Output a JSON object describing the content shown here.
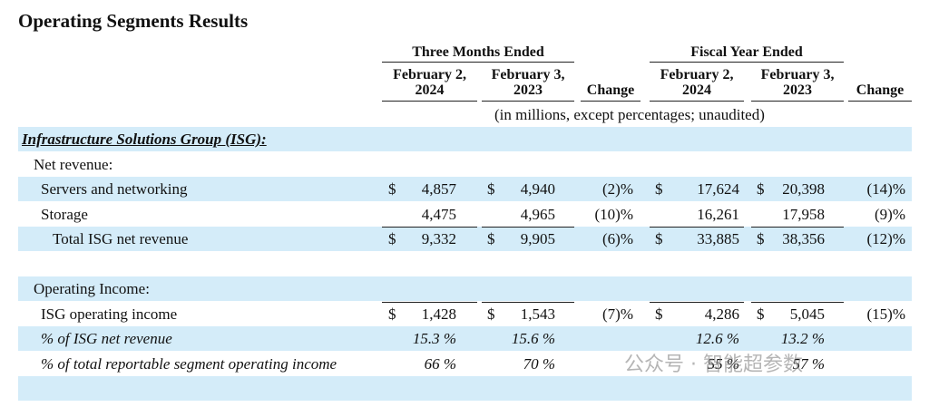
{
  "title": "Operating Segments Results",
  "groups": [
    "Three Months Ended",
    "Fiscal Year Ended"
  ],
  "columns": [
    "February 2,\n2024",
    "February 3,\n2023",
    "Change",
    "February 2,\n2024",
    "February 3,\n2023",
    "Change"
  ],
  "note": "(in millions, except percentages; unaudited)",
  "rows": [
    {
      "label": "Infrastructure Solutions Group (ISG):",
      "style": "section"
    },
    {
      "label": "Net revenue:",
      "style": "sub"
    },
    {
      "label": "Servers and networking",
      "style": "item",
      "cells": [
        {
          "cur": "$",
          "amt": "4,857"
        },
        {
          "cur": "$",
          "amt": "4,940"
        },
        "(2)%",
        {
          "cur": "$",
          "amt": "17,624"
        },
        {
          "cur": "$",
          "amt": "20,398"
        },
        "(14)%"
      ]
    },
    {
      "label": "Storage",
      "style": "item",
      "cells": [
        "4,475",
        "4,965",
        "(10)%",
        "16,261",
        "17,958",
        "(9)%"
      ]
    },
    {
      "label": "Total ISG net revenue",
      "style": "total",
      "cells": [
        {
          "cur": "$",
          "amt": "9,332"
        },
        {
          "cur": "$",
          "amt": "9,905"
        },
        "(6)%",
        {
          "cur": "$",
          "amt": "33,885"
        },
        {
          "cur": "$",
          "amt": "38,356"
        },
        "(12)%"
      ]
    },
    {
      "style": "blank"
    },
    {
      "label": "Operating Income:",
      "style": "sub"
    },
    {
      "label": "ISG operating income",
      "style": "total",
      "cells": [
        {
          "cur": "$",
          "amt": "1,428"
        },
        {
          "cur": "$",
          "amt": "1,543"
        },
        "(7)%",
        {
          "cur": "$",
          "amt": "4,286"
        },
        {
          "cur": "$",
          "amt": "5,045"
        },
        "(15)%"
      ]
    },
    {
      "label": "% of ISG net revenue",
      "style": "italic",
      "cells": [
        "15.3 %",
        "15.6 %",
        null,
        "12.6 %",
        "13.2 %",
        null
      ]
    },
    {
      "label": "% of total reportable segment operating income",
      "style": "italic",
      "cells": [
        "66 %",
        "70 %",
        null,
        "55 %",
        "57 %",
        null
      ]
    },
    {
      "style": "blank"
    }
  ],
  "watermark": "公众号 · 智能超参数"
}
